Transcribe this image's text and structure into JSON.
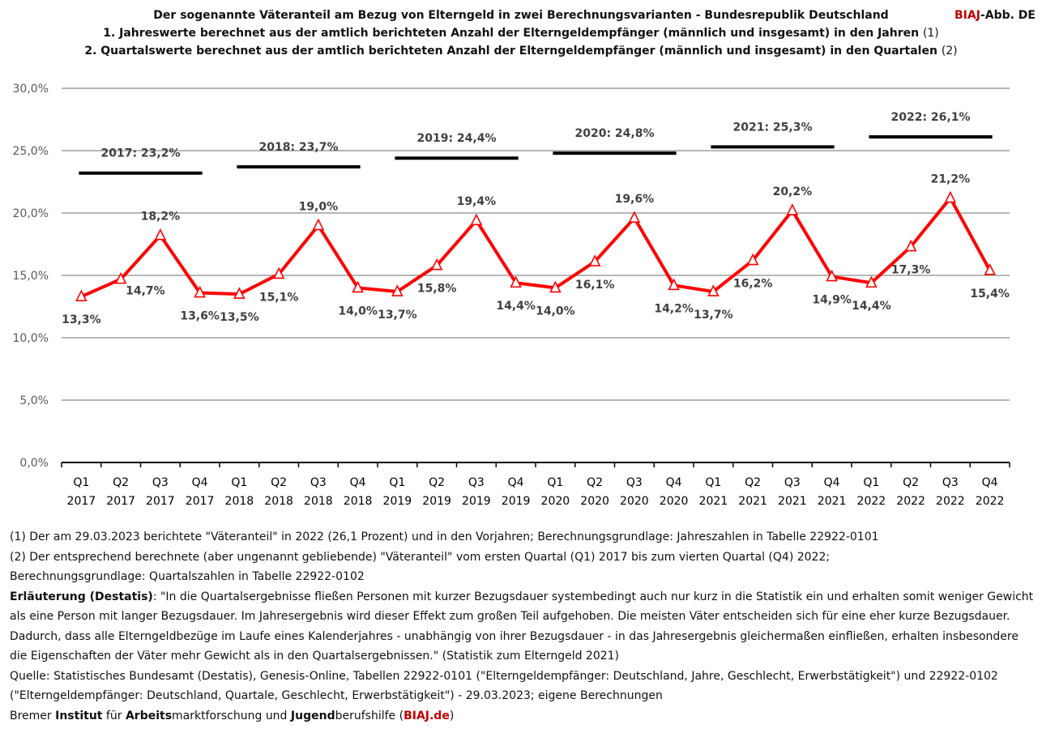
{
  "header": {
    "title": "Der sogenannte Väteranteil am Bezug von Elterngeld in zwei Berechnungsvarianten - Bundesrepublik Deutschland",
    "line1": "1. Jahreswerte berechnet aus der amtlich berichteten Anzahl der Elterngeldempfänger (männlich und insgesamt) in den Jahren",
    "line1_ref": "(1)",
    "line2": "2. Quartalswerte berechnet aus der amtlich berichteten Anzahl der Elterngeldempfänger (männlich und insgesamt) in den Quartalen",
    "line2_ref": "(2)",
    "brand_red": "BIAJ",
    "brand_rest": "-Abb. DE"
  },
  "chart_data": {
    "type": "line",
    "y_ticks": [
      "0,0%",
      "5,0%",
      "10,0%",
      "15,0%",
      "20,0%",
      "25,0%",
      "30,0%"
    ],
    "ylim": [
      0,
      30
    ],
    "grid": true,
    "categories": [
      "Q1|2017",
      "Q2|2017",
      "Q3|2017",
      "Q4|2017",
      "Q1|2018",
      "Q2|2018",
      "Q3|2018",
      "Q4|2018",
      "Q1|2019",
      "Q2|2019",
      "Q3|2019",
      "Q4|2019",
      "Q1|2020",
      "Q2|2020",
      "Q3|2020",
      "Q4|2020",
      "Q1|2021",
      "Q2|2021",
      "Q3|2021",
      "Q4|2021",
      "Q1|2022",
      "Q2|2022",
      "Q3|2022",
      "Q4|2022"
    ],
    "quarterly": {
      "color": "#ff0000",
      "values": [
        13.3,
        14.7,
        18.2,
        13.6,
        13.5,
        15.1,
        19.0,
        14.0,
        13.7,
        15.8,
        19.4,
        14.4,
        14.0,
        16.1,
        19.6,
        14.2,
        13.7,
        16.2,
        20.2,
        14.9,
        14.4,
        17.3,
        21.2,
        15.4
      ],
      "labels": [
        "13,3%",
        "14,7%",
        "18,2%",
        "13,6%",
        "13,5%",
        "15,1%",
        "19,0%",
        "14,0%",
        "13,7%",
        "15,8%",
        "19,4%",
        "14,4%",
        "14,0%",
        "16,1%",
        "19,6%",
        "14,2%",
        "13,7%",
        "16,2%",
        "20,2%",
        "14,9%",
        "14,4%",
        "17,3%",
        "21,2%",
        "15,4%"
      ],
      "label_pos": [
        "below",
        "right",
        "above",
        "below",
        "below",
        "below",
        "above",
        "below",
        "below",
        "below",
        "above",
        "below",
        "below",
        "below",
        "above",
        "below",
        "below",
        "below",
        "above",
        "below",
        "below",
        "below",
        "above",
        "below"
      ]
    },
    "annual": {
      "color": "#000000",
      "years": [
        "2017",
        "2018",
        "2019",
        "2020",
        "2021",
        "2022"
      ],
      "values": [
        23.2,
        23.7,
        24.4,
        24.8,
        25.3,
        26.1
      ],
      "labels": [
        "2017:  23,2%",
        "2018: 23,7%",
        "2019: 24,4%",
        "2020: 24,8%",
        "2021: 25,3%",
        "2022: 26,1%"
      ]
    }
  },
  "notes": {
    "n1": "(1) Der am 29.03.2023 berichtete \"Väteranteil\" in 2022 (26,1 Prozent) und in den Vorjahren; Berechnungsgrundlage: Jahreszahlen in Tabelle  22922-0101",
    "n2": "(2) Der entsprechend berechnete (aber ungenannt gebliebende)  \"Väteranteil\" vom ersten Quartal (Q1) 2017 bis zum vierten Quartal (Q4) 2022;",
    "n3": "Berechnungsgrundlage: Quartalszahlen in Tabelle 22922-0102",
    "expl_label": "Erläuterung (Destatis)",
    "expl_text": ": \"In die Quartalsergebnisse fließen Personen mit kurzer Bezugsdauer systembedingt auch nur kurz in die Statistik ein und erhalten somit weniger Gewicht als eine Person mit langer Bezugsdauer. Im Jahresergebnis wird dieser Effekt zum großen Teil aufgehoben. Die meisten Väter entscheiden sich für eine eher kurze Bezugsdauer. Dadurch, dass alle Elterngeldbezüge im Laufe eines Kalenderjahres - unabhängig von ihrer Bezugsdauer - in das Jahresergebnis gleichermaßen einfließen, erhalten insbesondere die Eigenschaften der Väter mehr Gewicht als in den Quartalsergebnissen.\" (Statistik zum Elterngeld 2021)",
    "source": "Quelle: Statistisches Bundesamt (Destatis), Genesis-Online, Tabellen 22922-0101 (\"Elterngeldempfänger: Deutschland, Jahre, Geschlecht, Erwerbstätigkeit\") und 22922-0102 (\"Elterngeldempfänger: Deutschland, Quartale, Geschlecht, Erwerbstätigkeit\") - 29.03.2023; eigene Berechnungen",
    "inst": {
      "p1": "Bremer ",
      "b1": "Institut",
      "p2": " für ",
      "b2": "Arbeits",
      "p3": "marktforschung und ",
      "b3": "Jugend",
      "p4": "berufshilfe (",
      "link": "BIAJ.de",
      "p5": ")"
    }
  }
}
